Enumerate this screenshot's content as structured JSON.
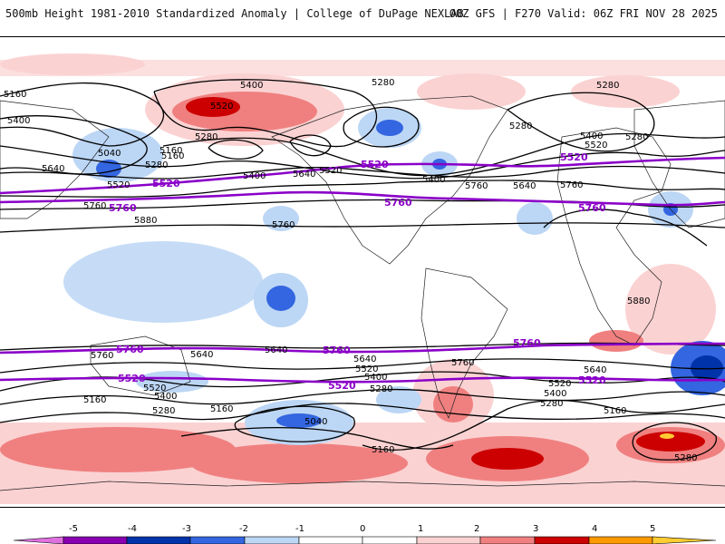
{
  "header": {
    "title_left": "500mb Height 1981-2010 Standardized Anomaly | College of DuPage NEXLAB",
    "title_right": "00Z GFS | F270 Valid: 06Z FRI NOV 28 2025"
  },
  "colors": {
    "neg5": "#e070e0",
    "neg4": "#8800b0",
    "neg3": "#0033aa",
    "neg2": "#3366e0",
    "neg1": "#bcd6f5",
    "zero": "#ffffff",
    "pos1": "#fbd2d2",
    "pos2": "#f08080",
    "pos3": "#cc0000",
    "pos4": "#ff9900",
    "pos5": "#ffcc33",
    "contour": "#000000",
    "contour_highlight": "#8a00c8"
  },
  "contour_labels": {
    "black": [
      "5160",
      "5400",
      "5280",
      "5520",
      "5280",
      "5400",
      "5040",
      "5160",
      "5280",
      "5640",
      "5520",
      "5280",
      "5400",
      "5640",
      "5520",
      "5400",
      "5760",
      "5640",
      "5280",
      "5520",
      "5400",
      "5760",
      "5880",
      "5760",
      "5160",
      "5280",
      "5880",
      "5760",
      "5640",
      "5760",
      "5640",
      "5520",
      "5400",
      "5160",
      "5280",
      "5040",
      "5760",
      "5640",
      "5520",
      "5400",
      "5280",
      "5640",
      "5520",
      "5400",
      "5280",
      "5160",
      "5160",
      "5280",
      "5160"
    ],
    "purple": [
      "5520",
      "5520",
      "5520",
      "5760",
      "5760",
      "5760",
      "5760",
      "5760",
      "5760",
      "5520",
      "5520",
      "5520"
    ]
  },
  "colorbar": {
    "ticks": [
      "-5",
      "-4",
      "-3",
      "-2",
      "-1",
      "0",
      "1",
      "2",
      "3",
      "4",
      "5"
    ]
  }
}
